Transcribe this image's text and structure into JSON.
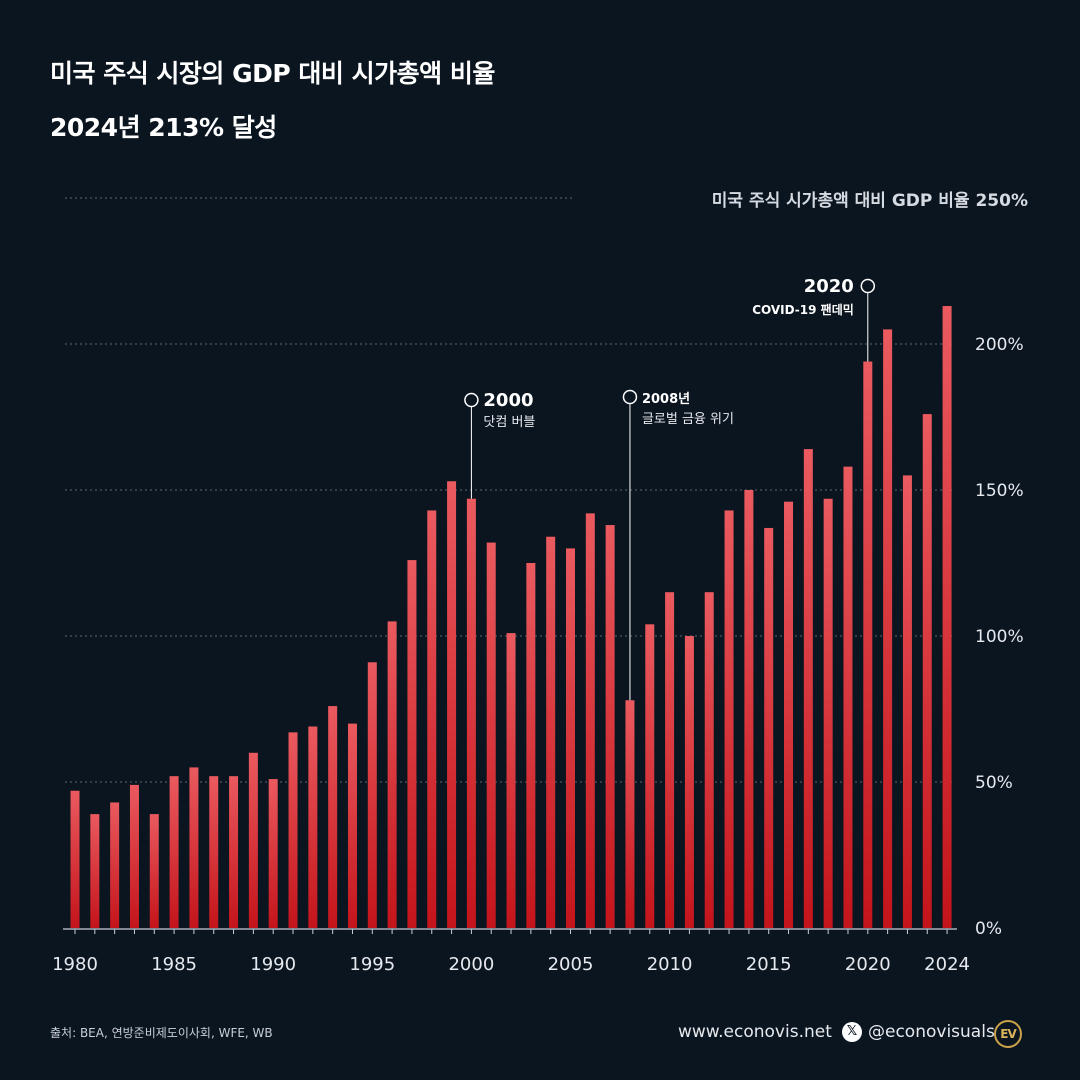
{
  "header": {
    "title": "미국 주식 시장의 GDP 대비 시가총액 비율",
    "subtitle": "2024년 213% 달성",
    "top_label": "미국 주식 시가총액 대비 GDP 비율 250%"
  },
  "footer": {
    "source": "출처: BEA, 연방준비제도이사회, WFE, WB",
    "site": "www.econovis.net",
    "x_icon": "x-logo-icon",
    "handle": "@econovisuals",
    "logo_text": "EV"
  },
  "colors": {
    "background": "#0b1520",
    "bar_top": "#ea5a5f",
    "bar_bottom": "#c4141b",
    "grid": "#5b6672",
    "text": "#ffffff",
    "logo": "#c9a24a"
  },
  "chart_data": {
    "type": "bar",
    "x": [
      1980,
      1981,
      1982,
      1983,
      1984,
      1985,
      1986,
      1987,
      1988,
      1989,
      1990,
      1991,
      1992,
      1993,
      1994,
      1995,
      1996,
      1997,
      1998,
      1999,
      2000,
      2001,
      2002,
      2003,
      2004,
      2005,
      2006,
      2007,
      2008,
      2009,
      2010,
      2011,
      2012,
      2013,
      2014,
      2015,
      2016,
      2017,
      2018,
      2019,
      2020,
      2021,
      2022,
      2023,
      2024
    ],
    "values": [
      47,
      39,
      43,
      49,
      39,
      52,
      55,
      52,
      52,
      60,
      51,
      67,
      69,
      76,
      70,
      91,
      105,
      126,
      143,
      153,
      147,
      132,
      101,
      125,
      134,
      130,
      142,
      138,
      78,
      104,
      115,
      100,
      115,
      143,
      150,
      137,
      146,
      164,
      147,
      158,
      194,
      205,
      155,
      176,
      213
    ],
    "xticks": [
      "1980",
      "1985",
      "1990",
      "1995",
      "2000",
      "2005",
      "2010",
      "2015",
      "2020",
      "2024"
    ],
    "yticks": [
      "0%",
      "50%",
      "100%",
      "150%",
      "200%"
    ],
    "ylim": [
      0,
      250
    ],
    "grid": true,
    "annotations": [
      {
        "x": 2000,
        "label": "2000",
        "text": "닷컴 버블"
      },
      {
        "x": 2008,
        "label": "2008년",
        "text": "글로벌 금융 위기"
      },
      {
        "x": 2020,
        "label": "2020",
        "text": "COVID-19 팬데믹"
      }
    ]
  }
}
